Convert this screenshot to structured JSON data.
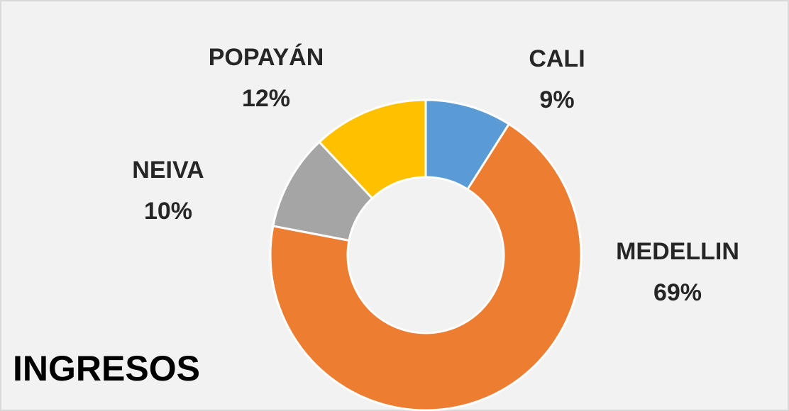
{
  "chart_data": {
    "type": "donut",
    "title": "INGRESOS",
    "categories": [
      "CALI",
      "MEDELLIN",
      "NEIVA",
      "POPAYÁN"
    ],
    "values": [
      9,
      69,
      10,
      12
    ],
    "value_labels": [
      "9%",
      "69%",
      "10%",
      "12%"
    ],
    "colors": [
      "#5b9bd5",
      "#ed7d31",
      "#a5a5a5",
      "#ffc000"
    ]
  }
}
